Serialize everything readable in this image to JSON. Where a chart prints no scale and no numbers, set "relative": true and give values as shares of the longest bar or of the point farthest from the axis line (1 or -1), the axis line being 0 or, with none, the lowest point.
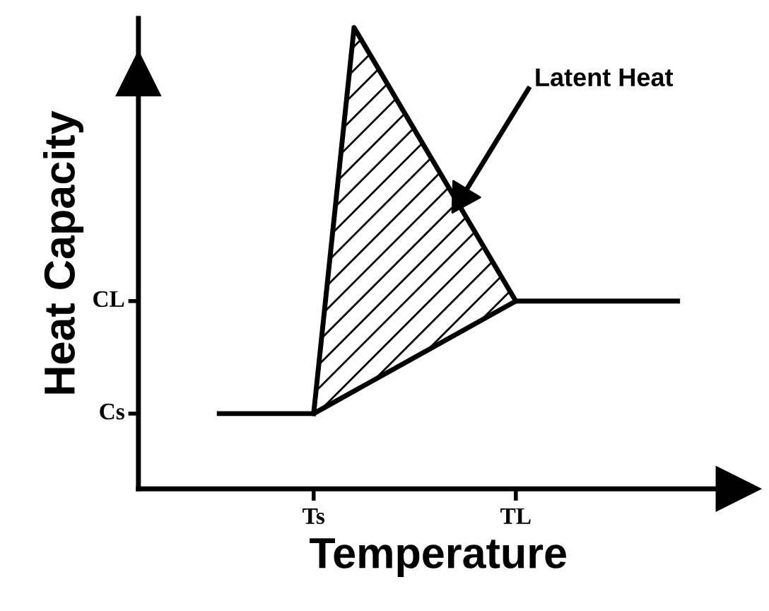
{
  "chart_data": {
    "type": "line",
    "xlabel": "Temperature",
    "ylabel": "Heat Capacity",
    "relative": true,
    "categories": [
      null,
      null,
      null,
      null,
      null,
      null,
      null,
      "Ts",
      null,
      null,
      null,
      null,
      null,
      null,
      null,
      null,
      null,
      null,
      null,
      null,
      null,
      null,
      "TL",
      null,
      null,
      null,
      null,
      null,
      null,
      null,
      null,
      null,
      null,
      null,
      null
    ],
    "series": [
      {
        "color": "#000000",
        "values": [
          0.163,
          null,
          null,
          null,
          null,
          null,
          null,
          0.163,
          null,
          null,
          null,
          null,
          null,
          null,
          null,
          null,
          null,
          null,
          null,
          null,
          null,
          null,
          0.407,
          null,
          null,
          null,
          null,
          null,
          null,
          null,
          null,
          null,
          null,
          null,
          0.407
        ]
      },
      {
        "color": "#000000",
        "values": [
          null,
          null,
          null,
          null,
          null,
          null,
          null,
          0.163,
          null,
          null,
          1,
          null,
          null,
          null,
          null,
          null,
          null,
          null,
          null,
          null,
          null,
          null,
          0.407,
          null,
          null,
          null,
          null,
          null,
          null,
          null,
          null,
          null,
          null,
          null,
          null
        ],
        "lower": [
          null,
          null,
          null,
          null,
          null,
          null,
          null,
          0.163,
          null,
          null,
          0.212,
          null,
          null,
          null,
          null,
          null,
          null,
          null,
          null,
          null,
          null,
          null,
          0.407,
          null,
          null,
          null,
          null,
          null,
          null,
          null,
          null,
          null,
          null,
          null,
          null
        ],
        "upper": [
          null,
          null,
          null,
          null,
          null,
          null,
          null,
          0.163,
          null,
          null,
          1,
          null,
          null,
          null,
          null,
          null,
          null,
          null,
          null,
          null,
          null,
          null,
          0.407,
          null,
          null,
          null,
          null,
          null,
          null,
          null,
          null,
          null,
          null,
          null,
          null
        ]
      }
    ],
    "annotations": [
      "Latent Heat",
      "Cs",
      "CL"
    ],
    "grid": false,
    "legend": false,
    "marker": "none",
    "line_style": "solid"
  }
}
